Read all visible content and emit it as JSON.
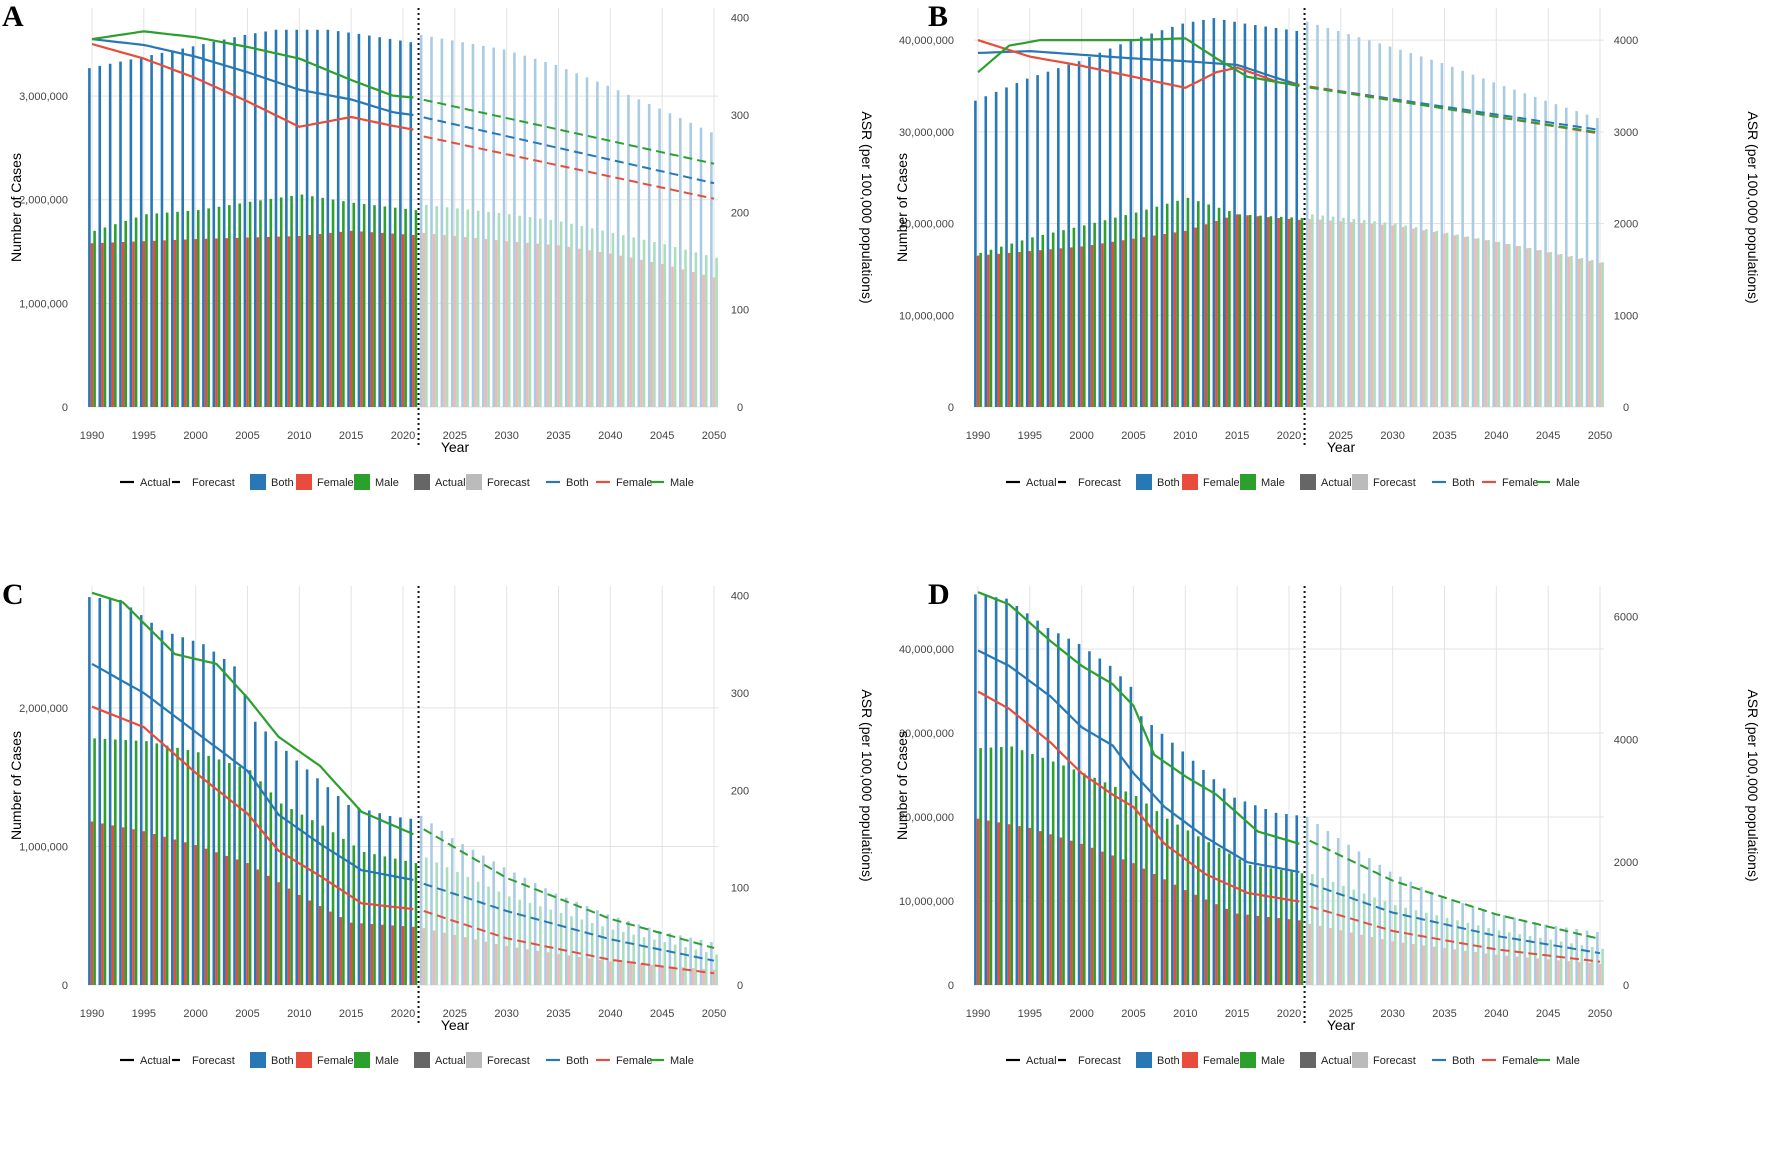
{
  "legend": {
    "line_type_keys": [
      "Actual",
      "Forecast"
    ],
    "bar_sex_keys": [
      "Both",
      "Female",
      "Male"
    ],
    "bar_period_keys": [
      "Actual",
      "Forecast"
    ],
    "line_sex_keys": [
      "Both",
      "Female",
      "Male"
    ]
  },
  "colors": {
    "Both": "#2878b5",
    "Female": "#e74c3c",
    "Male": "#2ca02c",
    "Both_forecast": "#a9cce3",
    "Female_forecast": "#f5b7b1",
    "Male_forecast": "#a9dfbf",
    "period_actual": "#666666",
    "period_forecast": "#bbbbbb"
  },
  "chart_data": [
    {
      "panel": "A",
      "type": "bar",
      "xlabel": "Year",
      "ylabel": "Number of Cases",
      "y2label": "ASR (per 100,000 populations)",
      "x_ticks": [
        1990,
        1995,
        2000,
        2005,
        2010,
        2015,
        2020,
        2025,
        2030,
        2035,
        2040,
        2045,
        2050
      ],
      "y_ticks": [
        0,
        1000000,
        2000000,
        3000000
      ],
      "y_tick_labels": [
        "0",
        "1,000,000",
        "2,000,000",
        "3,000,000"
      ],
      "ylim": [
        0,
        3850000
      ],
      "y2_ticks": [
        0,
        100,
        200,
        300,
        400
      ],
      "y2lim": [
        0,
        410
      ],
      "forecast_start": 2022,
      "bar_keys": {
        "Both": [
          1990,
          3270000,
          2000,
          3480000,
          2005,
          3590000,
          2008,
          3640000,
          2013,
          3640000,
          2016,
          3600000,
          2021,
          3520000,
          2022,
          3590000,
          2030,
          3450000,
          2035,
          3300000,
          2040,
          3100000,
          2045,
          2880000,
          2050,
          2650000
        ],
        "Female": [
          1990,
          1580000,
          2000,
          1620000,
          2010,
          1650000,
          2015,
          1700000,
          2021,
          1660000,
          2022,
          1680000,
          2030,
          1600000,
          2035,
          1560000,
          2040,
          1480000,
          2045,
          1380000,
          2050,
          1250000
        ],
        "Male": [
          1990,
          1700000,
          1995,
          1860000,
          2000,
          1900000,
          2005,
          1980000,
          2010,
          2050000,
          2015,
          1970000,
          2021,
          1900000,
          2022,
          1950000,
          2030,
          1860000,
          2035,
          1790000,
          2040,
          1680000,
          2045,
          1570000,
          2050,
          1440000
        ]
      },
      "line_keys": {
        "Both": [
          1990,
          378,
          1995,
          372,
          2000,
          360,
          2005,
          344,
          2010,
          326,
          2015,
          316,
          2019,
          303,
          2021,
          300,
          2050,
          230
        ],
        "Female": [
          1990,
          373,
          1995,
          358,
          2000,
          338,
          2005,
          314,
          2010,
          288,
          2015,
          298,
          2019,
          289,
          2021,
          285,
          2022,
          278,
          2050,
          214
        ],
        "Male": [
          1990,
          378,
          1995,
          386,
          2000,
          380,
          2005,
          370,
          2010,
          358,
          2015,
          336,
          2019,
          320,
          2021,
          318,
          2050,
          250
        ]
      }
    },
    {
      "panel": "B",
      "type": "bar",
      "xlabel": "Year",
      "ylabel": "Number of Cases",
      "y2label": "ASR (per 100,000 populations)",
      "x_ticks": [
        1990,
        1995,
        2000,
        2005,
        2010,
        2015,
        2020,
        2025,
        2030,
        2035,
        2040,
        2045,
        2050
      ],
      "y_ticks": [
        0,
        10000000,
        20000000,
        30000000,
        40000000
      ],
      "y_tick_labels": [
        "0",
        "10,000,000",
        "20,000,000",
        "30,000,000",
        "40,000,000"
      ],
      "ylim": [
        0,
        43500000
      ],
      "y2_ticks": [
        0,
        1000,
        2000,
        3000,
        4000
      ],
      "y2lim": [
        0,
        4350
      ],
      "forecast_start": 2022,
      "bar_keys": {
        "Both": [
          1990,
          33400000,
          1995,
          35800000,
          2000,
          37700000,
          2005,
          40000000,
          2010,
          41800000,
          2013,
          42400000,
          2016,
          41800000,
          2021,
          41000000,
          2022,
          42000000,
          2030,
          39300000,
          2035,
          37500000,
          2040,
          35400000,
          2045,
          33400000,
          2050,
          31500000
        ],
        "Female": [
          1990,
          16500000,
          2000,
          17500000,
          2010,
          19200000,
          2015,
          21000000,
          2021,
          20400000,
          2022,
          20500000,
          2030,
          19800000,
          2040,
          18000000,
          2050,
          15700000
        ],
        "Male": [
          1990,
          16800000,
          1995,
          18500000,
          2000,
          19800000,
          2005,
          21200000,
          2010,
          22800000,
          2015,
          21000000,
          2021,
          20600000,
          2022,
          21000000,
          2030,
          20000000,
          2040,
          18000000,
          2050,
          15800000
        ]
      },
      "line_keys": {
        "Both": [
          1990,
          3860,
          1995,
          3880,
          2000,
          3840,
          2005,
          3800,
          2010,
          3770,
          2015,
          3730,
          2019,
          3580,
          2021,
          3510,
          2050,
          3020
        ],
        "Female": [
          1990,
          4000,
          1995,
          3820,
          2000,
          3720,
          2005,
          3600,
          2010,
          3480,
          2013,
          3650,
          2015,
          3700,
          2019,
          3540,
          2021,
          3510,
          2050,
          2980
        ],
        "Male": [
          1990,
          3650,
          1993,
          3940,
          1996,
          4000,
          2005,
          4000,
          2010,
          4020,
          2013,
          3800,
          2016,
          3600,
          2019,
          3540,
          2021,
          3500,
          2050,
          2990
        ]
      }
    },
    {
      "panel": "C",
      "type": "bar",
      "xlabel": "Year",
      "ylabel": "Number of Cases",
      "y2label": "ASR (per 100,000 populations)",
      "x_ticks": [
        1990,
        1995,
        2000,
        2005,
        2010,
        2015,
        2020,
        2025,
        2030,
        2035,
        2040,
        2045,
        2050
      ],
      "y_ticks": [
        0,
        1000000,
        2000000
      ],
      "y_tick_labels": [
        "0",
        "1,000,000",
        "2,000,000"
      ],
      "ylim": [
        0,
        2880000
      ],
      "y2_ticks": [
        0,
        100,
        200,
        300,
        400
      ],
      "y2lim": [
        0,
        410
      ],
      "forecast_start": 2022,
      "bar_keys": {
        "Both": [
          1990,
          2800000,
          1993,
          2780000,
          1997,
          2560000,
          2001,
          2460000,
          2004,
          2300000,
          2006,
          1900000,
          2010,
          1620000,
          2015,
          1300000,
          2019,
          1220000,
          2021,
          1200000,
          2022,
          1220000,
          2025,
          1060000,
          2030,
          850000,
          2035,
          660000,
          2040,
          510000,
          2045,
          390000,
          2050,
          310000
        ],
        "Female": [
          1990,
          1180000,
          1995,
          1110000,
          2000,
          1010000,
          2005,
          880000,
          2010,
          650000,
          2015,
          450000,
          2021,
          420000,
          2022,
          410000,
          2030,
          280000,
          2040,
          170000,
          2050,
          110000
        ],
        "Male": [
          1990,
          1780000,
          1995,
          1760000,
          2000,
          1680000,
          2005,
          1550000,
          2008,
          1310000,
          2012,
          1150000,
          2016,
          960000,
          2021,
          880000,
          2022,
          920000,
          2030,
          640000,
          2040,
          400000,
          2050,
          220000
        ]
      },
      "line_keys": {
        "Both": [
          1990,
          330,
          1995,
          300,
          2000,
          260,
          2005,
          220,
          2008,
          175,
          2012,
          145,
          2016,
          118,
          2021,
          108,
          2022,
          104,
          2030,
          76,
          2040,
          47,
          2050,
          25
        ],
        "Female": [
          1990,
          286,
          1995,
          265,
          2000,
          218,
          2005,
          176,
          2008,
          138,
          2012,
          112,
          2016,
          84,
          2021,
          78,
          2022,
          76,
          2030,
          48,
          2040,
          26,
          2050,
          12
        ],
        "Male": [
          1990,
          403,
          1993,
          393,
          1998,
          340,
          2002,
          330,
          2005,
          295,
          2008,
          255,
          2012,
          225,
          2016,
          178,
          2021,
          155,
          2022,
          160,
          2030,
          110,
          2040,
          68,
          2050,
          38
        ]
      }
    },
    {
      "panel": "D",
      "type": "bar",
      "xlabel": "Year",
      "ylabel": "Number of Cases",
      "y2label": "ASR (per 100,000 populations)",
      "x_ticks": [
        1990,
        1995,
        2000,
        2005,
        2010,
        2015,
        2020,
        2025,
        2030,
        2035,
        2040,
        2045,
        2050
      ],
      "y_ticks": [
        0,
        10000000,
        20000000,
        30000000,
        40000000
      ],
      "y_tick_labels": [
        "0",
        "10,000,000",
        "20,000,000",
        "30,000,000",
        "40,000,000"
      ],
      "ylim": [
        0,
        47500000
      ],
      "y2_ticks": [
        0,
        2000,
        4000,
        6000
      ],
      "y2lim": [
        0,
        6500
      ],
      "forecast_start": 2022,
      "bar_keys": {
        "Both": [
          1990,
          46500000,
          1993,
          46000000,
          1997,
          42500000,
          2000,
          40600000,
          2003,
          38000000,
          2005,
          35500000,
          2006,
          32000000,
          2010,
          27800000,
          2015,
          22300000,
          2019,
          20500000,
          2021,
          20200000,
          2022,
          20000000,
          2025,
          17500000,
          2030,
          13500000,
          2035,
          10500000,
          2040,
          8600000,
          2045,
          7200000,
          2050,
          6300000
        ],
        "Female": [
          1990,
          19800000,
          1995,
          18700000,
          2000,
          16800000,
          2005,
          14500000,
          2010,
          11300000,
          2015,
          8500000,
          2021,
          7700000,
          2022,
          7300000,
          2030,
          5200000,
          2040,
          3600000,
          2050,
          2500000
        ],
        "Male": [
          1990,
          28200000,
          1993,
          28400000,
          1997,
          26600000,
          2000,
          25200000,
          2005,
          22500000,
          2008,
          19800000,
          2012,
          17000000,
          2016,
          14300000,
          2021,
          13300000,
          2022,
          13200000,
          2030,
          9500000,
          2040,
          6500000,
          2050,
          4300000
        ]
      },
      "line_keys": {
        "Both": [
          1990,
          5450,
          1993,
          5200,
          1997,
          4700,
          2000,
          4200,
          2003,
          3900,
          2005,
          3450,
          2008,
          2900,
          2012,
          2400,
          2016,
          2000,
          2021,
          1840,
          2022,
          1650,
          2030,
          1180,
          2040,
          800,
          2050,
          520
        ],
        "Female": [
          1990,
          4780,
          1993,
          4500,
          1997,
          3950,
          2000,
          3450,
          2003,
          3100,
          2005,
          2900,
          2008,
          2300,
          2012,
          1800,
          2016,
          1500,
          2021,
          1360,
          2022,
          1280,
          2030,
          880,
          2040,
          580,
          2050,
          380
        ],
        "Male": [
          1990,
          6400,
          1993,
          6200,
          1997,
          5600,
          2000,
          5200,
          2003,
          4900,
          2005,
          4550,
          2007,
          3750,
          2010,
          3400,
          2013,
          3100,
          2017,
          2500,
          2021,
          2300,
          2022,
          2350,
          2030,
          1700,
          2040,
          1150,
          2050,
          750
        ]
      }
    }
  ]
}
